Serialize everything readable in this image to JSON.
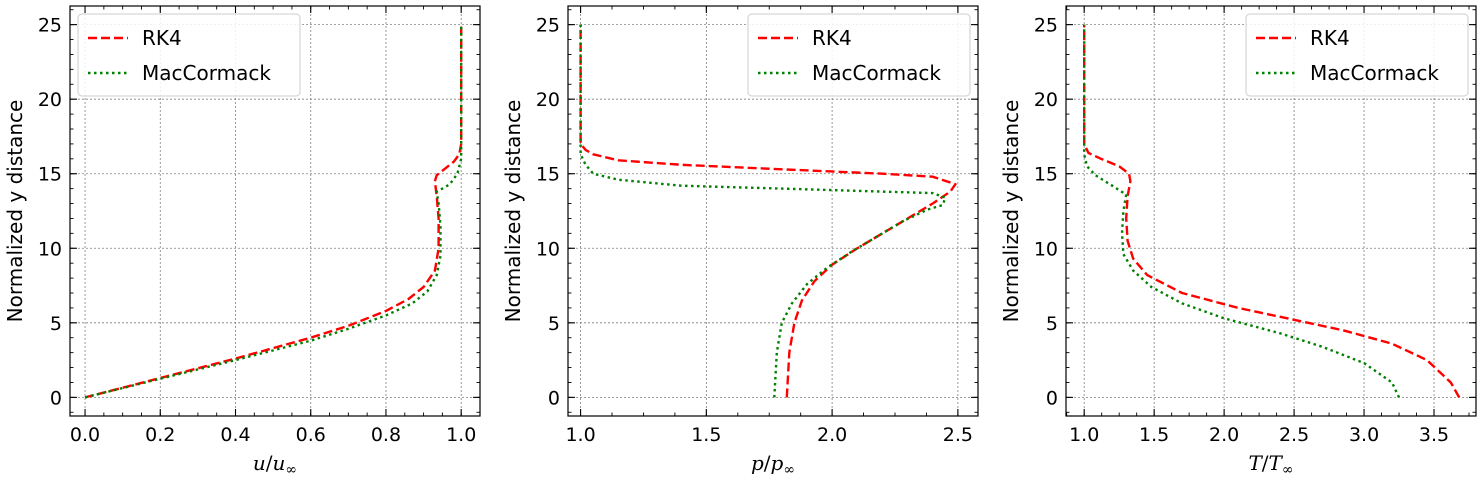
{
  "colors": {
    "rk4": "#ff0000",
    "maccormack": "#008000",
    "grid": "#808080"
  },
  "chart_data": [
    {
      "type": "line",
      "xlabel": "u/u∞",
      "xlabel_parts": [
        "u",
        "/",
        "u",
        "∞"
      ],
      "ylabel": "Normalized y distance",
      "xlim": [
        -0.04,
        1.05
      ],
      "ylim": [
        -1.25,
        26.25
      ],
      "xticks": [
        0.0,
        0.2,
        0.4,
        0.6,
        0.8,
        1.0
      ],
      "xtick_labels": [
        "0.0",
        "0.2",
        "0.4",
        "0.6",
        "0.8",
        "1.0"
      ],
      "yticks": [
        0,
        5,
        10,
        15,
        20,
        25
      ],
      "ytick_labels": [
        "0",
        "5",
        "10",
        "15",
        "20",
        "25"
      ],
      "grid": true,
      "legend_position": "top-left",
      "series": [
        {
          "name": "RK4",
          "style": "dashed",
          "x": [
            0.0,
            0.2,
            0.4,
            0.6,
            0.7,
            0.8,
            0.86,
            0.9,
            0.93,
            0.94,
            0.94,
            0.935,
            0.93,
            0.935,
            0.96,
            0.98,
            0.995,
            1.0,
            1.0
          ],
          "y": [
            0,
            1.3,
            2.6,
            4.0,
            4.8,
            5.8,
            6.6,
            7.4,
            8.5,
            10.0,
            12.0,
            13.5,
            14.5,
            14.9,
            15.4,
            15.8,
            16.3,
            17.0,
            25.0
          ]
        },
        {
          "name": "MacCormack",
          "style": "dotted",
          "x": [
            0.0,
            0.2,
            0.4,
            0.6,
            0.7,
            0.8,
            0.87,
            0.91,
            0.935,
            0.945,
            0.945,
            0.94,
            0.935,
            0.95,
            0.97,
            0.99,
            1.0,
            1.0
          ],
          "y": [
            0,
            1.25,
            2.5,
            3.8,
            4.6,
            5.5,
            6.3,
            7.1,
            8.2,
            9.5,
            11.5,
            13.0,
            13.8,
            14.0,
            14.3,
            15.0,
            16.0,
            25.0
          ]
        }
      ]
    },
    {
      "type": "line",
      "xlabel": "p/p∞",
      "xlabel_parts": [
        "p",
        "/",
        "p",
        "∞"
      ],
      "ylabel": "Normalized y distance",
      "xlim": [
        0.95,
        2.58
      ],
      "ylim": [
        -1.25,
        26.25
      ],
      "xticks": [
        1.0,
        1.5,
        2.0,
        2.5
      ],
      "xtick_labels": [
        "1.0",
        "1.5",
        "2.0",
        "2.5"
      ],
      "yticks": [
        0,
        5,
        10,
        15,
        20,
        25
      ],
      "ytick_labels": [
        "0",
        "5",
        "10",
        "15",
        "20",
        "25"
      ],
      "grid": true,
      "legend_position": "top-right",
      "series": [
        {
          "name": "RK4",
          "style": "dashed",
          "x": [
            1.82,
            1.83,
            1.85,
            1.88,
            1.93,
            2.0,
            2.1,
            2.2,
            2.3,
            2.4,
            2.47,
            2.49,
            2.4,
            2.2,
            1.8,
            1.4,
            1.15,
            1.05,
            1.02,
            1.0,
            1.0
          ],
          "y": [
            0,
            3.0,
            5.0,
            6.5,
            7.8,
            8.9,
            10.0,
            11.0,
            12.0,
            13.0,
            13.8,
            14.3,
            14.8,
            15.0,
            15.3,
            15.6,
            15.9,
            16.3,
            16.6,
            17.0,
            25.0
          ]
        },
        {
          "name": "MacCormack",
          "style": "dotted",
          "x": [
            1.77,
            1.78,
            1.8,
            1.84,
            1.9,
            1.98,
            2.08,
            2.18,
            2.28,
            2.38,
            2.44,
            2.45,
            2.4,
            2.2,
            1.8,
            1.4,
            1.15,
            1.05,
            1.02,
            1.0,
            1.0
          ],
          "y": [
            0,
            3.0,
            5.0,
            6.3,
            7.6,
            8.7,
            9.8,
            10.8,
            11.8,
            12.6,
            12.9,
            13.4,
            13.7,
            13.8,
            14.0,
            14.2,
            14.6,
            15.0,
            15.6,
            16.3,
            25.0
          ]
        }
      ]
    },
    {
      "type": "line",
      "xlabel": "T/T∞",
      "xlabel_parts": [
        "T",
        "/",
        "T",
        "∞"
      ],
      "ylabel": "Normalized y distance",
      "xlim": [
        0.87,
        3.8
      ],
      "ylim": [
        -1.25,
        26.25
      ],
      "xticks": [
        1.0,
        1.5,
        2.0,
        2.5,
        3.0,
        3.5
      ],
      "xtick_labels": [
        "1.0",
        "1.5",
        "2.0",
        "2.5",
        "3.0",
        "3.5"
      ],
      "yticks": [
        0,
        5,
        10,
        15,
        20,
        25
      ],
      "ytick_labels": [
        "0",
        "5",
        "10",
        "15",
        "20",
        "25"
      ],
      "grid": true,
      "legend_position": "top-right",
      "series": [
        {
          "name": "RK4",
          "style": "dashed",
          "x": [
            3.68,
            3.62,
            3.45,
            3.2,
            2.85,
            2.5,
            2.1,
            1.7,
            1.45,
            1.35,
            1.31,
            1.3,
            1.31,
            1.33,
            1.32,
            1.25,
            1.12,
            1.03,
            1.0,
            1.0
          ],
          "y": [
            0,
            1.0,
            2.5,
            3.6,
            4.5,
            5.2,
            6.0,
            7.0,
            8.2,
            9.3,
            10.5,
            12.0,
            13.5,
            14.5,
            15.0,
            15.5,
            16.0,
            16.4,
            17.0,
            25.0
          ]
        },
        {
          "name": "MacCormack",
          "style": "dotted",
          "x": [
            3.25,
            3.2,
            3.0,
            2.7,
            2.4,
            2.0,
            1.7,
            1.48,
            1.35,
            1.28,
            1.27,
            1.28,
            1.3,
            1.2,
            1.08,
            1.02,
            1.0,
            1.0
          ],
          "y": [
            0,
            1.0,
            2.3,
            3.4,
            4.3,
            5.3,
            6.3,
            7.4,
            8.5,
            9.6,
            11.0,
            12.5,
            13.6,
            14.2,
            14.9,
            15.5,
            16.3,
            25.0
          ]
        }
      ]
    }
  ]
}
